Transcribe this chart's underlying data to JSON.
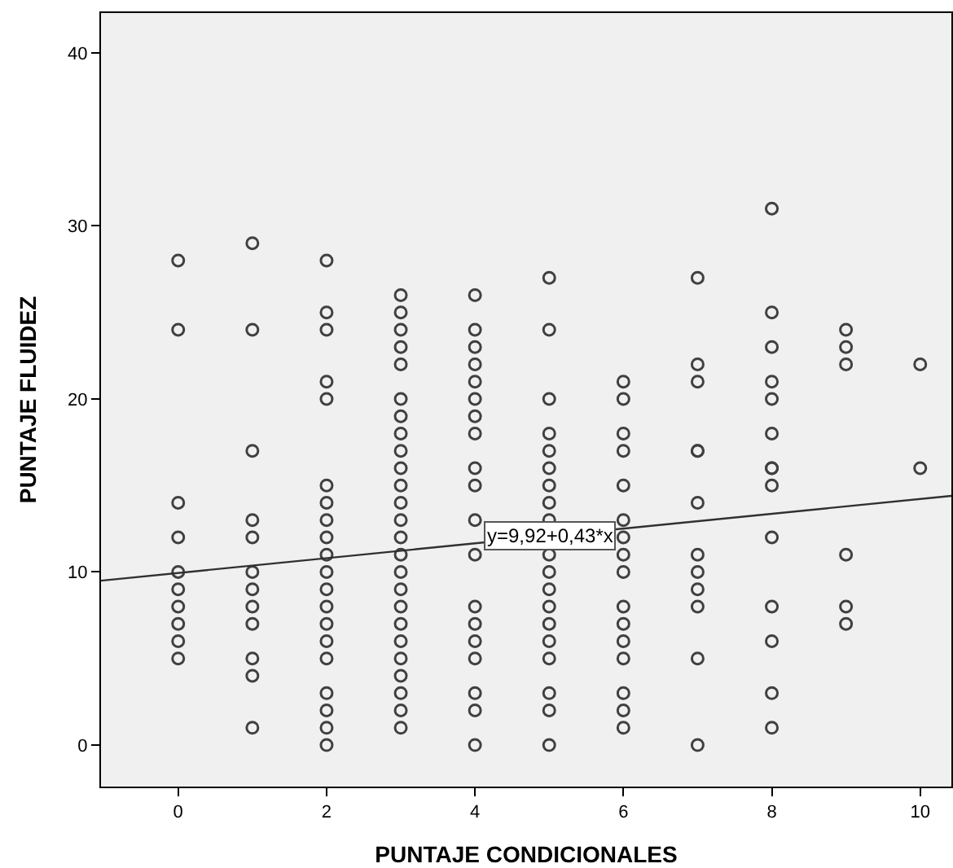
{
  "chart_data": {
    "type": "scatter",
    "xlabel": "PUNTAJE CONDICIONALES",
    "ylabel": "PUNTAJE FLUIDEZ",
    "xlim": [
      -1.04,
      10.42
    ],
    "ylim": [
      -2.4,
      42.3
    ],
    "xticks": [
      0,
      2,
      4,
      6,
      8,
      10
    ],
    "yticks": [
      0,
      10,
      20,
      30,
      40
    ],
    "grid": false,
    "marker": "circle",
    "series": [
      {
        "color": "#404040",
        "x": [
          0,
          0,
          0,
          0,
          0,
          0,
          0,
          0,
          0,
          0,
          1,
          1,
          1,
          1,
          1,
          1,
          1,
          1,
          1,
          1,
          1,
          1,
          2,
          2,
          2,
          2,
          2,
          2,
          2,
          2,
          2,
          2,
          2,
          2,
          2,
          2,
          2,
          2,
          2,
          2,
          2,
          2,
          3,
          3,
          3,
          3,
          3,
          3,
          3,
          3,
          3,
          3,
          3,
          3,
          3,
          3,
          3,
          3,
          3,
          3,
          3,
          3,
          3,
          3,
          3,
          3,
          3,
          4,
          4,
          4,
          4,
          4,
          4,
          4,
          4,
          4,
          4,
          4,
          4,
          4,
          4,
          4,
          4,
          4,
          4,
          4,
          5,
          5,
          5,
          5,
          5,
          5,
          5,
          5,
          5,
          5,
          5,
          5,
          5,
          5,
          5,
          5,
          5,
          5,
          5,
          6,
          6,
          6,
          6,
          6,
          6,
          6,
          6,
          6,
          6,
          6,
          6,
          6,
          6,
          6,
          6,
          7,
          7,
          7,
          7,
          7,
          7,
          7,
          7,
          7,
          7,
          7,
          7,
          8,
          8,
          8,
          8,
          8,
          8,
          8,
          8,
          8,
          8,
          8,
          8,
          8,
          8,
          9,
          9,
          9,
          9,
          9,
          9,
          10,
          10
        ],
        "values": [
          28,
          24,
          14,
          12,
          10,
          9,
          8,
          7,
          6,
          5,
          29,
          24,
          17,
          13,
          12,
          10,
          9,
          8,
          7,
          5,
          4,
          1,
          28,
          25,
          24,
          21,
          20,
          15,
          14,
          13,
          12,
          11,
          10,
          9,
          8,
          7,
          6,
          5,
          3,
          2,
          1,
          0,
          26,
          25,
          24,
          23,
          22,
          20,
          19,
          18,
          17,
          16,
          15,
          14,
          13,
          12,
          11,
          10,
          9,
          8,
          7,
          6,
          5,
          4,
          3,
          2,
          1,
          26,
          24,
          23,
          22,
          21,
          20,
          19,
          18,
          16,
          15,
          13,
          11,
          8,
          7,
          6,
          5,
          3,
          2,
          0,
          27,
          24,
          20,
          18,
          17,
          16,
          15,
          14,
          13,
          11,
          10,
          9,
          8,
          7,
          6,
          5,
          3,
          2,
          0,
          21,
          20,
          18,
          17,
          15,
          13,
          12,
          11,
          10,
          8,
          7,
          6,
          5,
          3,
          2,
          1,
          27,
          22,
          21,
          17,
          14,
          11,
          10,
          9,
          8,
          5,
          0,
          17,
          31,
          25,
          23,
          21,
          20,
          18,
          16,
          15,
          12,
          8,
          6,
          3,
          1,
          16,
          24,
          23,
          22,
          11,
          8,
          7,
          22,
          16
        ]
      },
      {
        "type": "line",
        "marker": "none",
        "color": "#303030",
        "x": [
          -1.04,
          10.42
        ],
        "values": [
          9.5,
          14.4
        ]
      }
    ],
    "annotations": [
      {
        "text": "y=9,92+0,43*x",
        "x": 5,
        "y": 12.1
      }
    ]
  }
}
